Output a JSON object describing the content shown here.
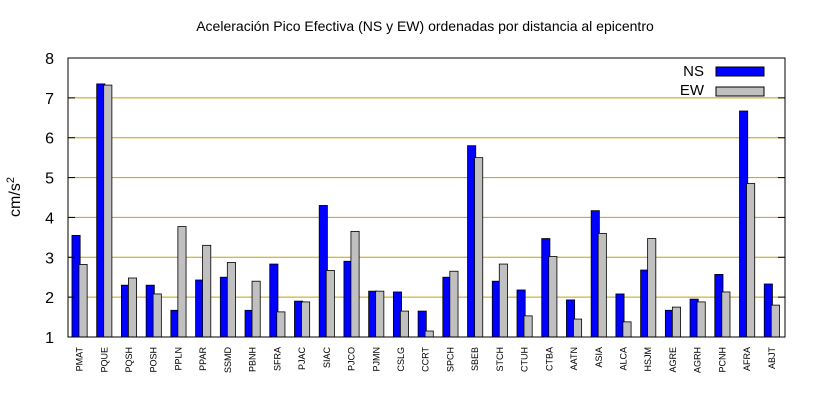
{
  "chart_data": {
    "type": "bar",
    "title": "Aceleración Pico Efectiva (NS y EW) ordenadas por distancia al epicentro",
    "ylabel_base": "cm/s",
    "ylabel_sup": "2",
    "ylim": [
      1,
      8
    ],
    "yticks": [
      "1",
      "2",
      "3",
      "4",
      "5",
      "6",
      "7",
      "8"
    ],
    "grid": "horizontal",
    "legend_position": "top-right",
    "categories": [
      "PMAT",
      "PQUE",
      "PQSH",
      "POSH",
      "PPLN",
      "PPAR",
      "SSMD",
      "PBNH",
      "SFRA",
      "PJAC",
      "SIAC",
      "PJCO",
      "PJMN",
      "CSLG",
      "CCRT",
      "SPCH",
      "SBEB",
      "STCH",
      "CTUH",
      "CTBA",
      "AATN",
      "ASIA",
      "ALCA",
      "HSJM",
      "AGRE",
      "AGRH",
      "PCNH",
      "AFRA",
      "ABJT"
    ],
    "series": [
      {
        "name": "NS",
        "color": "#0000ff",
        "values": [
          3.55,
          7.35,
          2.3,
          2.3,
          1.67,
          2.43,
          2.5,
          1.67,
          2.83,
          1.9,
          4.3,
          2.9,
          2.15,
          2.13,
          1.65,
          2.5,
          5.8,
          2.4,
          2.18,
          3.47,
          1.93,
          4.17,
          2.08,
          2.68,
          1.67,
          1.95,
          2.57,
          6.67,
          2.33
        ]
      },
      {
        "name": "EW",
        "color": "#c0c0c0",
        "values": [
          2.82,
          7.32,
          2.48,
          2.08,
          3.77,
          3.3,
          2.87,
          2.4,
          1.63,
          1.88,
          2.67,
          3.65,
          2.15,
          1.65,
          1.15,
          2.65,
          5.5,
          2.83,
          1.53,
          3.02,
          1.45,
          3.6,
          1.38,
          3.47,
          1.75,
          1.88,
          2.13,
          4.85,
          1.8
        ]
      }
    ]
  }
}
